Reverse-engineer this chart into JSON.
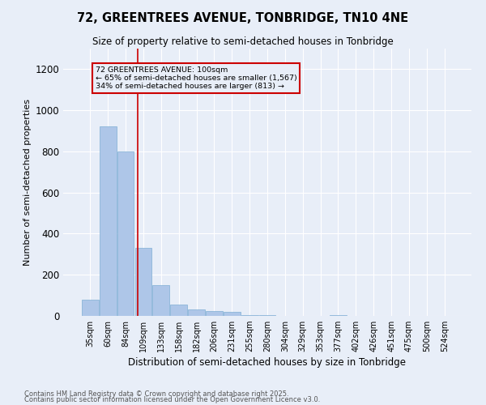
{
  "title": "72, GREENTREES AVENUE, TONBRIDGE, TN10 4NE",
  "subtitle": "Size of property relative to semi-detached houses in Tonbridge",
  "xlabel": "Distribution of semi-detached houses by size in Tonbridge",
  "ylabel": "Number of semi-detached properties",
  "footnote1": "Contains HM Land Registry data © Crown copyright and database right 2025.",
  "footnote2": "Contains public sector information licensed under the Open Government Licence v3.0.",
  "categories": [
    "35sqm",
    "60sqm",
    "84sqm",
    "109sqm",
    "133sqm",
    "158sqm",
    "182sqm",
    "206sqm",
    "231sqm",
    "255sqm",
    "280sqm",
    "304sqm",
    "329sqm",
    "353sqm",
    "377sqm",
    "402sqm",
    "426sqm",
    "451sqm",
    "475sqm",
    "500sqm",
    "524sqm"
  ],
  "values": [
    80,
    920,
    800,
    330,
    150,
    55,
    30,
    25,
    20,
    5,
    3,
    1,
    0,
    0,
    3,
    0,
    0,
    0,
    0,
    0,
    0
  ],
  "bar_color": "#aec6e8",
  "bar_edge_color": "#7fafd4",
  "background_color": "#e8eef8",
  "grid_color": "#ffffff",
  "red_line_x": 2.68,
  "annotation_title": "72 GREENTREES AVENUE: 100sqm",
  "annotation_line1": "← 65% of semi-detached houses are smaller (1,567)",
  "annotation_line2": "34% of semi-detached houses are larger (813) →",
  "annotation_box_color": "#cc0000",
  "ylim": [
    0,
    1300
  ],
  "yticks": [
    0,
    200,
    400,
    600,
    800,
    1000,
    1200
  ]
}
